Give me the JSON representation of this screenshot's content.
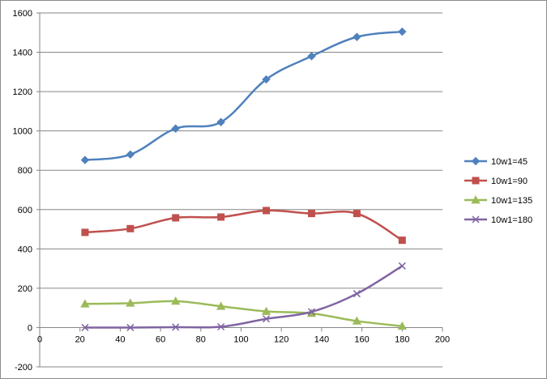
{
  "chart_data": {
    "type": "line",
    "title": "",
    "xlabel": "",
    "ylabel": "",
    "xlim": [
      0,
      200
    ],
    "ylim": [
      -200,
      1600
    ],
    "x_ticks": [
      "0",
      "20",
      "40",
      "60",
      "80",
      "100",
      "120",
      "140",
      "160",
      "180",
      "200"
    ],
    "y_ticks": [
      "-200",
      "0",
      "200",
      "400",
      "600",
      "800",
      "1000",
      "1200",
      "1400",
      "1600"
    ],
    "grid": "horizontal",
    "legend_position": "right",
    "x": [
      22.5,
      45,
      67.5,
      90,
      112.5,
      135,
      157.5,
      180
    ],
    "series": [
      {
        "name": "10w1=45",
        "color": "#4F81BD",
        "marker": "diamond",
        "values": [
          852,
          880,
          1012,
          1045,
          1262,
          1380,
          1478,
          1505
        ]
      },
      {
        "name": "10w1=90",
        "color": "#C0504D",
        "marker": "square",
        "values": [
          484,
          503,
          558,
          562,
          595,
          580,
          580,
          444
        ]
      },
      {
        "name": "10w1=135",
        "color": "#9BBB59",
        "marker": "triangle",
        "values": [
          120,
          124,
          134,
          108,
          82,
          72,
          33,
          7
        ]
      },
      {
        "name": "10w1=180",
        "color": "#8064A2",
        "marker": "x",
        "values": [
          0,
          0,
          2,
          4,
          44,
          80,
          172,
          313
        ]
      }
    ]
  }
}
